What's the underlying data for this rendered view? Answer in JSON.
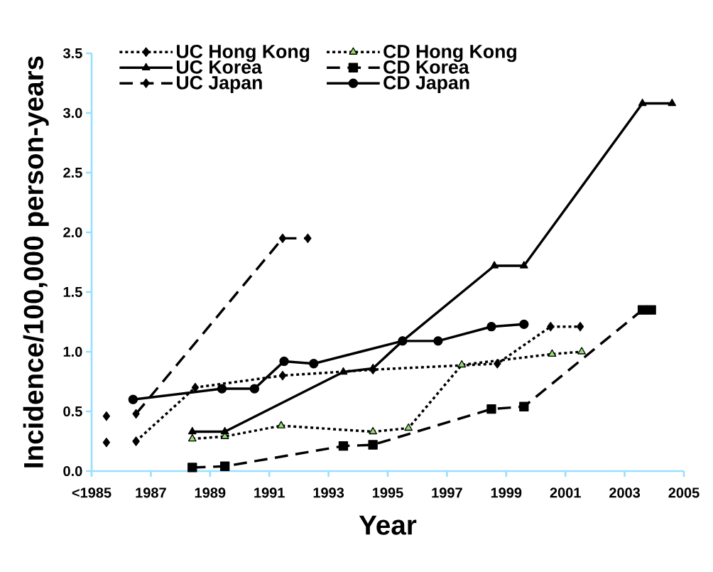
{
  "chart_data": {
    "type": "line",
    "xlabel": "Year",
    "ylabel": "Incidence/100,000 person-years",
    "xlim": [
      1985,
      2005
    ],
    "ylim": [
      0,
      3.5
    ],
    "xticks": [
      {
        "value": 1985,
        "label": "<1985"
      },
      1987,
      1989,
      1991,
      1993,
      1995,
      1997,
      1999,
      2001,
      2003,
      2005
    ],
    "yticks": [
      {
        "value": 0,
        "label": "0.0"
      },
      0.5,
      {
        "value": 1,
        "label": "1.0"
      },
      1.5,
      {
        "value": 2,
        "label": "2.0"
      },
      2.5,
      {
        "value": 3,
        "label": "3.0"
      },
      3.5
    ],
    "grid": false,
    "legend": "top left",
    "series": [
      {
        "name": "UC Hong Kong",
        "color": "#000000",
        "marker": "diamond",
        "line_style": "dotted",
        "x": [
          1985.5,
          1986,
          1986.5,
          1988.5,
          1991.45,
          1994.5,
          1998.7,
          2000.5,
          2001.5
        ],
        "values": [
          0.24,
          null,
          0.25,
          0.7,
          0.8,
          0.85,
          0.9,
          1.21,
          1.21
        ]
      },
      {
        "name": "UC Korea",
        "color": "#000000",
        "marker": "triangle",
        "line_style": "solid",
        "x": [
          1988.4,
          1989.5,
          1993.5,
          1994.5,
          1995.5,
          1998.6,
          1999.6,
          2003.6,
          2004.6
        ],
        "values": [
          0.33,
          0.33,
          0.83,
          0.86,
          1.09,
          1.72,
          1.72,
          3.08,
          3.08
        ]
      },
      {
        "name": "UC Japan",
        "color": "#000000",
        "marker": "diamond",
        "line_style": "dashed",
        "x": [
          1985.5,
          1986,
          1986.5,
          1991.45,
          1992.3
        ],
        "values": [
          0.46,
          null,
          0.48,
          1.95,
          1.95
        ]
      },
      {
        "name": "CD Hong Kong",
        "color": "#92e070",
        "marker": "triangle",
        "line_style": "dotted",
        "x": [
          1988.4,
          1989.5,
          1991.4,
          1994.5,
          1995.7,
          1997.5,
          2000.55,
          2001.55
        ],
        "values": [
          0.27,
          0.29,
          0.38,
          0.33,
          0.36,
          0.89,
          0.98,
          1.0
        ]
      },
      {
        "name": "CD Korea",
        "color": "#000000",
        "marker": "square",
        "line_style": "dashed",
        "x": [
          1988.4,
          1989.5,
          1993.5,
          1994.5,
          1998.5,
          1999.6,
          2003.6,
          2003.9
        ],
        "values": [
          0.03,
          0.04,
          0.21,
          0.22,
          0.52,
          0.54,
          1.35,
          1.35
        ]
      },
      {
        "name": "CD Japan",
        "color": "#000000",
        "marker": "circle",
        "line_style": "solid",
        "x": [
          1986.4,
          1989.4,
          1990.5,
          1991.5,
          1992.5,
          1995.5,
          1996.7,
          1998.5,
          1999.6
        ],
        "values": [
          0.6,
          0.69,
          0.69,
          0.92,
          0.9,
          1.09,
          1.09,
          1.21,
          1.23
        ]
      }
    ]
  }
}
